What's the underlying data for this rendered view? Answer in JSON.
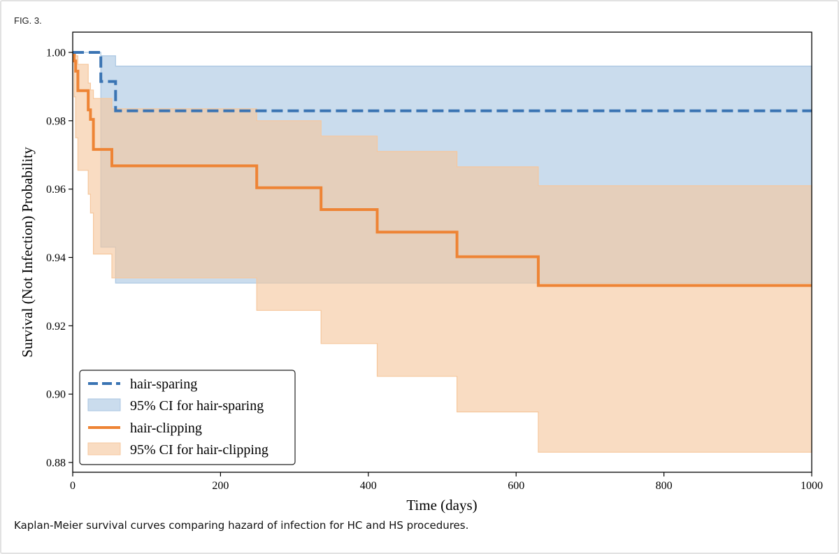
{
  "figure": {
    "label": "FIG. 3.",
    "caption": "Kaplan-Meier survival curves comparing hazard of infection for HC and HS procedures."
  },
  "colors": {
    "hair_sparing": "#3a74b3",
    "hair_sparing_ci": "#a9c6e2",
    "hair_clipping": "#ee8435",
    "hair_clipping_ci": "#f6c79d"
  },
  "chart_data": {
    "type": "line",
    "xlabel": "Time (days)",
    "ylabel": "Survival (Not Infection) Probability",
    "xlim": [
      0,
      1000
    ],
    "ylim": [
      0.88,
      1.0
    ],
    "xticks": [
      0,
      200,
      400,
      600,
      800,
      1000
    ],
    "xtick_labels": [
      "0",
      "200",
      "400",
      "600",
      "800",
      "1000"
    ],
    "yticks": [
      0.88,
      0.9,
      0.92,
      0.94,
      0.96,
      0.98,
      1.0
    ],
    "ytick_labels": [
      "0.88",
      "0.90",
      "0.92",
      "0.94",
      "0.96",
      "0.98",
      "1.00"
    ],
    "grid": false,
    "legend_position": "bottom-left",
    "series": [
      {
        "name": "hair-sparing",
        "style": "dashed",
        "color_key": "hair_sparing",
        "steps": {
          "x": [
            0,
            38,
            58,
            1000
          ],
          "y": [
            1.0,
            0.9915,
            0.9829,
            0.9829
          ]
        }
      },
      {
        "name": "95% CI for hair-sparing",
        "style": "band",
        "color_key": "hair_sparing_ci",
        "steps": {
          "x": [
            0,
            38,
            58,
            250,
            520,
            630,
            1000
          ],
          "upper": [
            1.0,
            0.999,
            0.996,
            0.996,
            0.996,
            0.996,
            0.996
          ],
          "lower": [
            1.0,
            0.943,
            0.9325,
            0.9325,
            0.9325,
            0.9325,
            0.9325
          ]
        }
      },
      {
        "name": "hair-clipping",
        "style": "solid",
        "color_key": "hair_clipping",
        "steps": {
          "x": [
            0,
            2,
            4,
            7,
            21,
            24,
            28,
            53,
            249,
            336,
            412,
            520,
            630,
            1000
          ],
          "y": [
            1.0,
            0.9975,
            0.9945,
            0.9888,
            0.9832,
            0.9804,
            0.9716,
            0.9668,
            0.9604,
            0.954,
            0.9474,
            0.9402,
            0.9318,
            0.9318
          ]
        }
      },
      {
        "name": "95% CI for hair-clipping",
        "style": "band",
        "color_key": "hair_clipping_ci",
        "steps": {
          "x": [
            0,
            2,
            4,
            7,
            21,
            24,
            28,
            53,
            249,
            336,
            412,
            520,
            630,
            1000
          ],
          "upper": [
            1.0,
            0.9995,
            0.999,
            0.9965,
            0.991,
            0.989,
            0.9865,
            0.9835,
            0.98,
            0.9755,
            0.971,
            0.9665,
            0.961,
            0.961
          ],
          "lower": [
            1.0,
            0.987,
            0.975,
            0.9655,
            0.9585,
            0.953,
            0.941,
            0.934,
            0.9245,
            0.9148,
            0.9052,
            0.8948,
            0.883,
            0.883
          ]
        }
      }
    ]
  }
}
